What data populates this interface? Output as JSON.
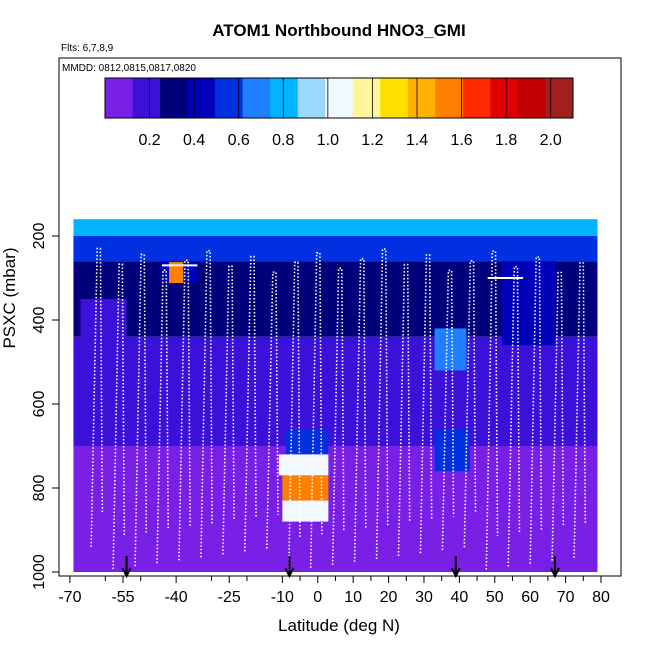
{
  "chart_data": {
    "type": "heatmap",
    "title": "ATOM1 Northbound HNO3_GMI",
    "flights_note": "Flts: 6,7,8,9",
    "dates_note": "MMDD: 0812,0815,0817,0820",
    "xlabel": "Latitude (deg N)",
    "ylabel": "PSXC (mbar)",
    "xlim": [
      -70,
      82
    ],
    "ylim": [
      1020,
      60
    ],
    "x_ticks": [
      "-70",
      "-55",
      "-40",
      "-25",
      "-10",
      "0",
      "10",
      "20",
      "30",
      "40",
      "50",
      "60",
      "70",
      "80"
    ],
    "x_tick_values": [
      -70,
      -55,
      -40,
      -25,
      -10,
      0,
      10,
      20,
      30,
      40,
      50,
      60,
      70,
      80
    ],
    "x_minor_ticks": [
      -60,
      -50,
      -30,
      -20,
      -5,
      5,
      15,
      25,
      35,
      45,
      55,
      65,
      75
    ],
    "y_ticks": [
      "200",
      "400",
      "600",
      "800",
      "1000"
    ],
    "y_tick_values": [
      200,
      400,
      600,
      800,
      1000
    ],
    "colorbar": {
      "ticks": [
        "0.2",
        "0.4",
        "0.6",
        "0.8",
        "1.0",
        "1.2",
        "1.4",
        "1.6",
        "1.8",
        "2.0"
      ],
      "tick_values": [
        0.2,
        0.4,
        0.6,
        0.8,
        1.0,
        1.2,
        1.4,
        1.6,
        1.8,
        2.0
      ],
      "range": [
        0.0,
        2.1
      ],
      "colors": [
        "#7a1fe6",
        "#3b10d8",
        "#00007a",
        "#0000b8",
        "#0030e0",
        "#1f7fff",
        "#00b4ff",
        "#9bd7ff",
        "#f2f8ff",
        "#fff59a",
        "#ffe000",
        "#ffb000",
        "#ff8000",
        "#ff2a00",
        "#e00000",
        "#c00000",
        "#a01f1f"
      ]
    },
    "descent_latitudes": [
      -54,
      -8,
      39,
      67
    ],
    "heatmap_regions": [
      {
        "lat": [
          -69,
          79
        ],
        "p": [
          160,
          200
        ],
        "value": 0.8
      },
      {
        "lat": [
          -69,
          79
        ],
        "p": [
          200,
          260
        ],
        "value": 0.55
      },
      {
        "lat": [
          -69,
          79
        ],
        "p": [
          260,
          440
        ],
        "value": 0.3
      },
      {
        "lat": [
          -69,
          79
        ],
        "p": [
          440,
          700
        ],
        "value": 0.2
      },
      {
        "lat": [
          -69,
          79
        ],
        "p": [
          700,
          1000
        ],
        "value": 0.06
      },
      {
        "lat": [
          -44,
          -34
        ],
        "p": [
          260,
          310
        ],
        "value": 0.45
      },
      {
        "lat": [
          -42,
          -38
        ],
        "p": [
          262,
          312
        ],
        "value": 1.5
      },
      {
        "lat": [
          33,
          42
        ],
        "p": [
          420,
          520
        ],
        "value": 0.65
      },
      {
        "lat": [
          33,
          43
        ],
        "p": [
          660,
          760
        ],
        "value": 0.55
      },
      {
        "lat": [
          -9,
          3
        ],
        "p": [
          660,
          720
        ],
        "value": 0.6
      },
      {
        "lat": [
          -11,
          3
        ],
        "p": [
          720,
          770
        ],
        "value": 1.1
      },
      {
        "lat": [
          -10,
          3
        ],
        "p": [
          770,
          830
        ],
        "value": 1.6
      },
      {
        "lat": [
          -10,
          3
        ],
        "p": [
          830,
          880
        ],
        "value": 1.05
      },
      {
        "lat": [
          -67,
          -54
        ],
        "p": [
          350,
          700
        ],
        "value": 0.15
      },
      {
        "lat": [
          52,
          67
        ],
        "p": [
          260,
          460
        ],
        "value": 0.45
      }
    ],
    "flight_track_note": "white dotted profiles of aircraft ascents/descents"
  }
}
